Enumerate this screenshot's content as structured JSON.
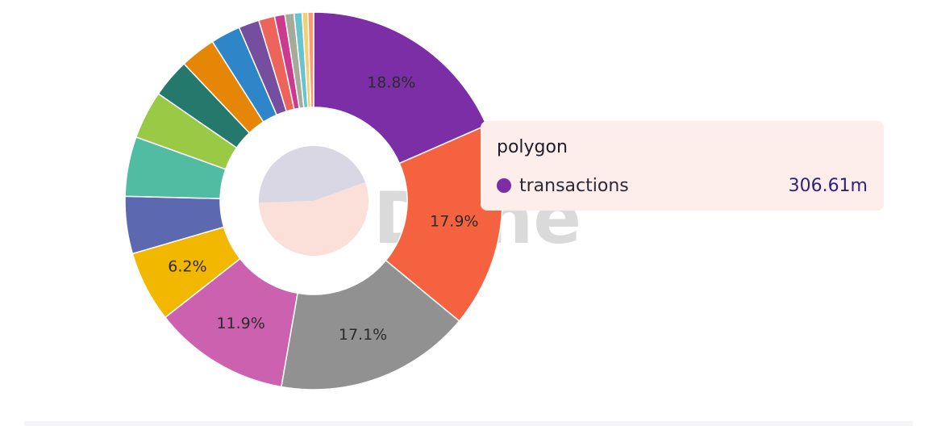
{
  "watermark": "Dune",
  "chart_data": {
    "type": "pie",
    "donut": true,
    "legend": "none",
    "series_name": "transactions",
    "slices": [
      {
        "label": "polygon",
        "value": 18.8,
        "color": "#7b2ea6",
        "label_text": "18.8%"
      },
      {
        "label": "",
        "value": 17.9,
        "color": "#f46240",
        "label_text": "17.9%"
      },
      {
        "label": "",
        "value": 17.1,
        "color": "#919191",
        "label_text": "17.1%"
      },
      {
        "label": "",
        "value": 11.9,
        "color": "#cc61b0",
        "label_text": "11.9%"
      },
      {
        "label": "",
        "value": 6.2,
        "color": "#f2b800",
        "label_text": "6.2%"
      },
      {
        "label": "",
        "value": 5.0,
        "color": "#5c69b1",
        "label_text": ""
      },
      {
        "label": "",
        "value": 5.2,
        "color": "#52bca3",
        "label_text": ""
      },
      {
        "label": "",
        "value": 4.2,
        "color": "#99c945",
        "label_text": ""
      },
      {
        "label": "",
        "value": 3.4,
        "color": "#24796c",
        "label_text": ""
      },
      {
        "label": "",
        "value": 3.1,
        "color": "#e58607",
        "label_text": ""
      },
      {
        "label": "",
        "value": 2.6,
        "color": "#2e86c8",
        "label_text": ""
      },
      {
        "label": "",
        "value": 1.8,
        "color": "#764e9f",
        "label_text": ""
      },
      {
        "label": "",
        "value": 1.4,
        "color": "#ed645a",
        "label_text": ""
      },
      {
        "label": "",
        "value": 0.9,
        "color": "#cc3a8e",
        "label_text": ""
      },
      {
        "label": "",
        "value": 0.8,
        "color": "#a5aa99",
        "label_text": ""
      },
      {
        "label": "",
        "value": 0.7,
        "color": "#66c5cc",
        "label_text": ""
      },
      {
        "label": "",
        "value": 0.5,
        "color": "#f6cf71",
        "label_text": ""
      },
      {
        "label": "",
        "value": 0.5,
        "color": "#f89c74",
        "label_text": ""
      }
    ],
    "inner_pie": [
      {
        "value": 55,
        "color": "#fbdfd9"
      },
      {
        "value": 45,
        "color": "#d9d7e4"
      }
    ]
  },
  "tooltip": {
    "title": "polygon",
    "series": "transactions",
    "value": "306.61m",
    "dot_color": "#7b2ea6",
    "value_color": "#2f237a"
  }
}
